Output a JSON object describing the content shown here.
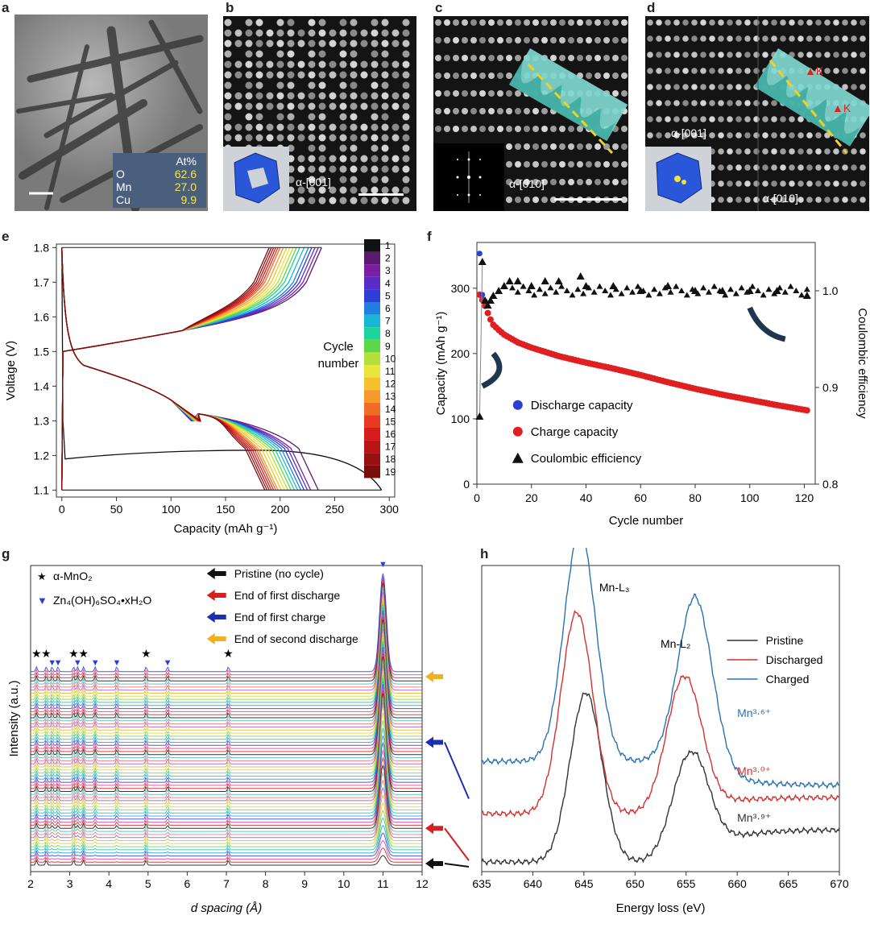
{
  "panels": {
    "a": {
      "letter": "a",
      "table_header": "At%",
      "rows": [
        {
          "el": "O",
          "val": "62.6"
        },
        {
          "el": "Mn",
          "val": "27.0"
        },
        {
          "el": "Cu",
          "val": "9.9"
        }
      ]
    },
    "b": {
      "letter": "b",
      "label": "α-[001]"
    },
    "c": {
      "letter": "c",
      "label": "α-[010]"
    },
    "d": {
      "letter": "d",
      "label1": "α-[001]",
      "label2": "α-[010]",
      "marker": "K"
    },
    "e": {
      "letter": "e"
    },
    "f": {
      "letter": "f"
    },
    "g": {
      "letter": "g"
    },
    "h": {
      "letter": "h"
    }
  },
  "chart_data": [
    {
      "id": "e",
      "type": "line",
      "xlabel": "Capacity (mAh g⁻¹)",
      "ylabel": "Voltage (V)",
      "xlim": [
        -5,
        305
      ],
      "ylim": [
        1.08,
        1.81
      ],
      "xticks": [
        "0",
        "50",
        "100",
        "150",
        "200",
        "250",
        "300"
      ],
      "yticks": [
        "1.1",
        "1.2",
        "1.3",
        "1.4",
        "1.5",
        "1.6",
        "1.7",
        "1.8"
      ],
      "colorbar_title": [
        "Cycle",
        "number"
      ],
      "cycles": [
        "1",
        "2",
        "3",
        "4",
        "5",
        "6",
        "7",
        "8",
        "9",
        "10",
        "11",
        "12",
        "13",
        "14",
        "15",
        "16",
        "17",
        "18",
        "19"
      ],
      "cycle_colors": [
        "#111111",
        "#5b1a6e",
        "#7b1fa2",
        "#5a2bc9",
        "#2f3fd6",
        "#1e7fe0",
        "#19b7d6",
        "#1ed39a",
        "#5fd64a",
        "#b5e03a",
        "#e9e53a",
        "#f7c02e",
        "#f59a28",
        "#f06d25",
        "#e83a23",
        "#d81c1c",
        "#bb1414",
        "#991010",
        "#7a0c0c"
      ],
      "discharge_end_capacity": [
        293,
        235,
        228,
        225,
        222,
        219,
        216,
        213,
        210,
        207,
        204,
        201,
        198,
        196,
        194,
        192,
        190,
        188,
        186
      ],
      "charge_end_capacity": [
        0,
        238,
        235,
        232,
        229,
        226,
        222,
        218,
        215,
        212,
        209,
        206,
        203,
        200,
        198,
        196,
        194,
        192,
        190
      ]
    },
    {
      "id": "f",
      "type": "scatter",
      "xlabel": "Cycle number",
      "ylabel": "Capacity (mAh g⁻¹)",
      "y2label": "Coulombic efficiency",
      "xlim": [
        0,
        124
      ],
      "ylim": [
        0,
        370
      ],
      "y2lim": [
        0.8,
        1.05
      ],
      "xticks": [
        "0",
        "20",
        "40",
        "60",
        "80",
        "100",
        "120"
      ],
      "yticks": [
        "0",
        "100",
        "200",
        "300"
      ],
      "y2ticks": [
        "0.8",
        "0.9",
        "1.0"
      ],
      "legend": [
        "Discharge capacity",
        "Charge capacity",
        "Coulombic efficiency"
      ],
      "discharge": {
        "cycle": [
          1,
          2,
          3,
          4,
          5,
          6,
          8,
          10,
          15,
          20,
          30,
          40,
          50,
          60,
          70,
          80,
          90,
          100,
          110,
          121
        ],
        "capacity": [
          353,
          290,
          280,
          268,
          258,
          248,
          238,
          230,
          218,
          210,
          197,
          187,
          178,
          168,
          157,
          147,
          138,
          130,
          122,
          114
        ]
      },
      "charge": {
        "cycle": [
          1,
          2,
          3,
          4,
          5,
          6,
          8,
          10,
          15,
          20,
          30,
          40,
          50,
          60,
          70,
          80,
          90,
          100,
          110,
          121
        ],
        "capacity": [
          290,
          282,
          273,
          262,
          252,
          244,
          236,
          229,
          217,
          209,
          196,
          186,
          177,
          167,
          156,
          146,
          137,
          129,
          121,
          113
        ]
      },
      "efficiency": {
        "cycle": [
          1,
          2,
          3,
          4,
          5,
          6,
          8,
          10,
          12,
          15,
          20,
          25,
          30,
          38,
          40,
          50,
          60,
          70,
          80,
          90,
          100,
          110,
          121
        ],
        "value": [
          0.87,
          1.03,
          0.99,
          0.985,
          0.99,
          0.995,
          1.0,
          1.005,
          1.01,
          1.01,
          1.005,
          1.01,
          1.01,
          1.015,
          1.005,
          1.005,
          1.0,
          1.005,
          1.0,
          1.0,
          1.0,
          1.0,
          0.995
        ]
      }
    },
    {
      "id": "g",
      "type": "line",
      "xlabel": "d spacing (Å)",
      "ylabel": "Intensity (a.u.)",
      "xlim": [
        2,
        12
      ],
      "xticks": [
        "2",
        "3",
        "4",
        "5",
        "6",
        "7",
        "8",
        "9",
        "10",
        "11",
        "12"
      ],
      "legend_markers": [
        {
          "sym": "★",
          "text": "α-MnO₂"
        },
        {
          "sym": "▼",
          "text": "Zn₄(OH)₆SO₄•xH₂O"
        }
      ],
      "legend_states": [
        {
          "text": "Pristine (no cycle)",
          "color": "#111111"
        },
        {
          "text": "End of first discharge",
          "color": "#d42020"
        },
        {
          "text": "End of first charge",
          "color": "#1c2fb0"
        },
        {
          "text": "End of second discharge",
          "color": "#f0b020"
        }
      ],
      "alpha_peaks": [
        2.15,
        2.4,
        3.1,
        3.35,
        4.95,
        7.05
      ],
      "zinc_peaks": [
        2.55,
        2.7,
        3.2,
        3.65,
        4.2,
        5.5,
        11.0
      ]
    },
    {
      "id": "h",
      "type": "line",
      "xlabel": "Energy loss (eV)",
      "xlim": [
        635,
        670
      ],
      "xticks": [
        "635",
        "640",
        "645",
        "650",
        "655",
        "660",
        "665",
        "670"
      ],
      "peak_labels": [
        "Mn-L₃",
        "Mn-L₂"
      ],
      "series": [
        {
          "name": "Pristine",
          "color": "#333333",
          "valence": "Mn³·⁹⁺"
        },
        {
          "name": "Discharged",
          "color": "#d63030",
          "valence": "Mn³·⁰⁺"
        },
        {
          "name": "Charged",
          "color": "#2a72b0",
          "valence": "Mn³·⁶⁺"
        }
      ]
    }
  ]
}
